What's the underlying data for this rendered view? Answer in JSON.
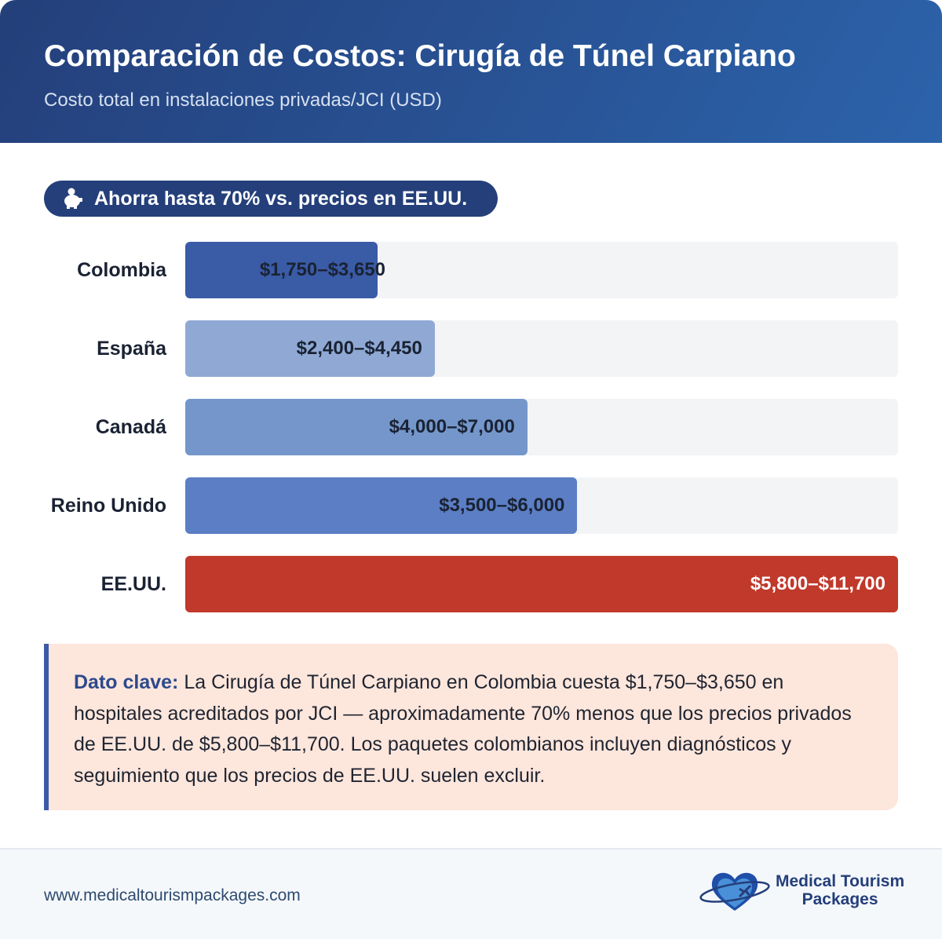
{
  "header": {
    "title": "Comparación de Costos: Cirugía de Túnel Carpiano",
    "subtitle": "Costo total en instalaciones privadas/JCI (USD)"
  },
  "badge": {
    "icon": "piggy-bank-icon",
    "text": "Ahorra hasta 70% vs. precios en EE.UU."
  },
  "chart_data": {
    "type": "bar",
    "orientation": "horizontal",
    "categories": [
      "Colombia",
      "España",
      "Canadá",
      "Reino Unido",
      "EE.UU."
    ],
    "ranges": [
      [
        1750,
        3650
      ],
      [
        2400,
        4450
      ],
      [
        4000,
        7000
      ],
      [
        3500,
        6000
      ],
      [
        5800,
        11700
      ]
    ],
    "labels": [
      "$1,750–$3,650",
      "$2,400–$4,450",
      "$4,000–$7,000",
      "$3,500–$6,000",
      "$5,800–$11,700"
    ],
    "fill_pct": [
      27,
      35,
      48,
      55,
      100
    ],
    "colors": [
      "#3a5ba6",
      "#8fa9d4",
      "#7496cb",
      "#5b7ec4",
      "#c0392b"
    ],
    "label_colors": [
      "#1a2233",
      "#1a2233",
      "#1a2233",
      "#1a2233",
      "#ffffff"
    ]
  },
  "callout": {
    "lead": "Dato clave:",
    "text": " La Cirugía de Túnel Carpiano en Colombia cuesta $1,750–$3,650 en hospitales acreditados por JCI — aproximadamente 70% menos que los precios privados de EE.UU. de $5,800–$11,700. Los paquetes colombianos incluyen diagnósticos y seguimiento que los precios de EE.UU. suelen excluir."
  },
  "footer": {
    "url": "www.medicaltourismpackages.com",
    "logo_line1": "Medical Tourism",
    "logo_line2": "Packages"
  }
}
